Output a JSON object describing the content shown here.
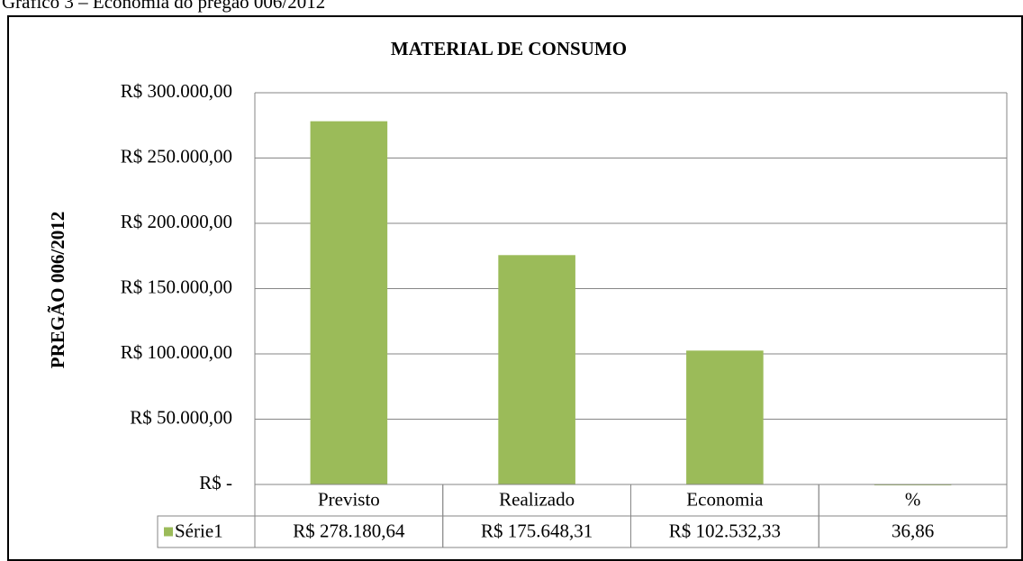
{
  "chart_data": {
    "type": "bar",
    "caption": "Gráfico 3 – Economia do pregão 006/2012",
    "title": "MATERIAL DE CONSUMO",
    "y_label": "PREGÃO 006/2012",
    "categories": [
      "Previsto",
      "Realizado",
      "Economia",
      "%"
    ],
    "series": [
      {
        "name": "Série1",
        "color": "#9bbb59",
        "values": [
          278180.64,
          175648.31,
          102532.33,
          36.86
        ],
        "value_labels": [
          "R$ 278.180,64",
          "R$ 175.648,31",
          "R$ 102.532,33",
          "36,86"
        ]
      }
    ],
    "ylim": [
      0,
      300000
    ],
    "yticks": [
      {
        "value": 0,
        "label": "R$ -"
      },
      {
        "value": 50000,
        "label": "R$ 50.000,00"
      },
      {
        "value": 100000,
        "label": "R$ 100.000,00"
      },
      {
        "value": 150000,
        "label": "R$ 150.000,00"
      },
      {
        "value": 200000,
        "label": "R$ 200.000,00"
      },
      {
        "value": 250000,
        "label": "R$ 250.000,00"
      },
      {
        "value": 300000,
        "label": "R$ 300.000,00"
      }
    ],
    "grid": true,
    "data_table": true
  }
}
